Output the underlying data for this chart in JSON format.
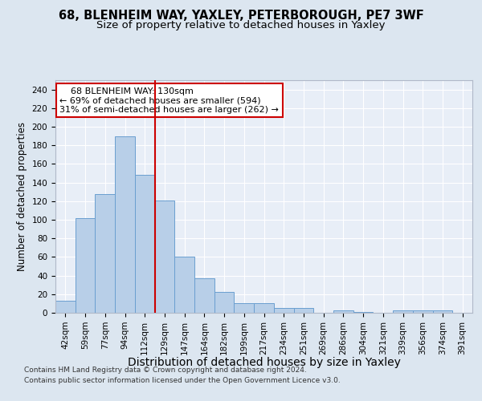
{
  "title_line1": "68, BLENHEIM WAY, YAXLEY, PETERBOROUGH, PE7 3WF",
  "title_line2": "Size of property relative to detached houses in Yaxley",
  "xlabel": "Distribution of detached houses by size in Yaxley",
  "ylabel": "Number of detached properties",
  "categories": [
    "42sqm",
    "59sqm",
    "77sqm",
    "94sqm",
    "112sqm",
    "129sqm",
    "147sqm",
    "164sqm",
    "182sqm",
    "199sqm",
    "217sqm",
    "234sqm",
    "251sqm",
    "269sqm",
    "286sqm",
    "304sqm",
    "321sqm",
    "339sqm",
    "356sqm",
    "374sqm",
    "391sqm"
  ],
  "values": [
    13,
    102,
    128,
    190,
    148,
    121,
    60,
    37,
    22,
    10,
    10,
    5,
    5,
    0,
    3,
    1,
    0,
    3,
    3,
    3,
    0
  ],
  "bar_color": "#b8cfe8",
  "bar_edge_color": "#6a9fd0",
  "vline_index": 5,
  "vline_color": "#cc0000",
  "annotation_line1": "    68 BLENHEIM WAY: 130sqm",
  "annotation_line2": "← 69% of detached houses are smaller (594)",
  "annotation_line3": "31% of semi-detached houses are larger (262) →",
  "annotation_box_color": "#ffffff",
  "annotation_box_edge": "#cc0000",
  "ylim": [
    0,
    250
  ],
  "yticks": [
    0,
    20,
    40,
    60,
    80,
    100,
    120,
    140,
    160,
    180,
    200,
    220,
    240
  ],
  "bg_color": "#dce6f0",
  "plot_bg_color": "#e8eef7",
  "grid_color": "#ffffff",
  "footer_line1": "Contains HM Land Registry data © Crown copyright and database right 2024.",
  "footer_line2": "Contains public sector information licensed under the Open Government Licence v3.0.",
  "title_fontsize": 10.5,
  "subtitle_fontsize": 9.5,
  "axis_xlabel_fontsize": 10,
  "axis_ylabel_fontsize": 8.5,
  "tick_fontsize": 7.5,
  "annotation_fontsize": 8,
  "footer_fontsize": 6.5
}
